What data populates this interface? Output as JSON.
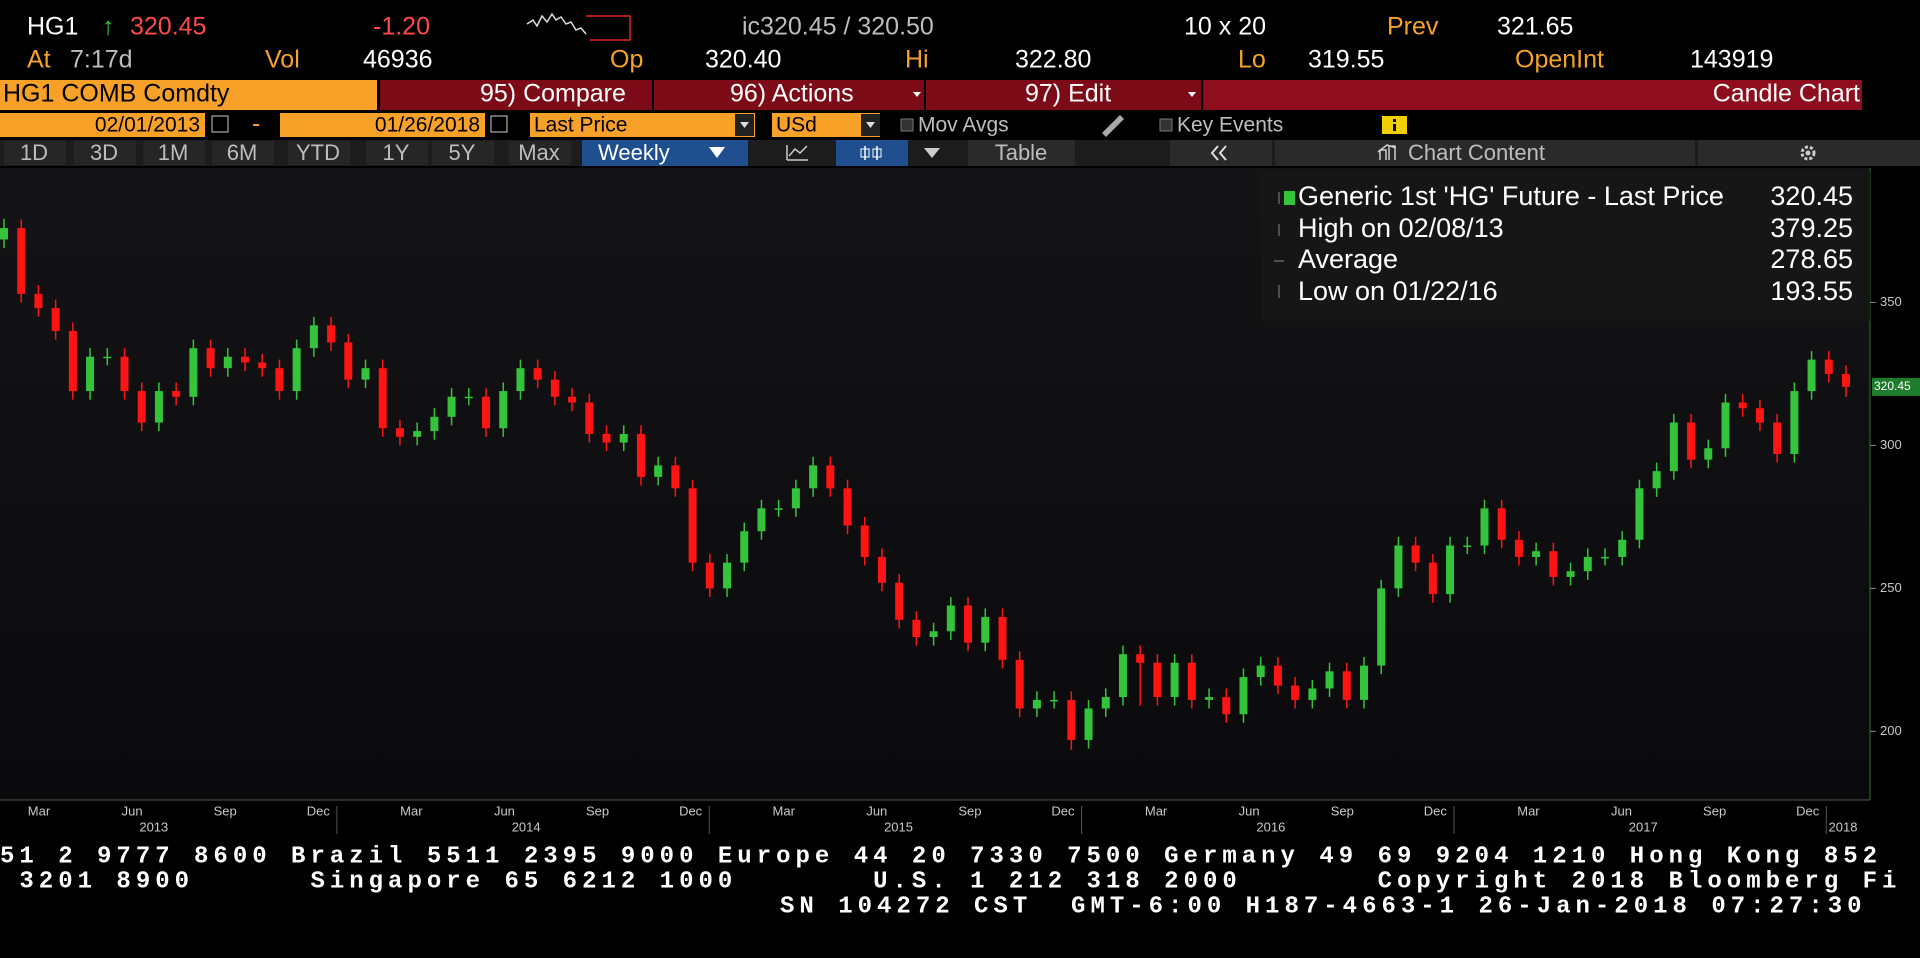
{
  "header": {
    "ticker": "HG1",
    "arrow": "↑",
    "last": "320.45",
    "change": "-1.20",
    "quote": "ic320.45 / 320.50",
    "size": "10 x 20",
    "prev_label": "Prev",
    "prev": "321.65",
    "at_label": "At",
    "time": "7:17d",
    "vol_label": "Vol",
    "vol": "46936",
    "op_label": "Op",
    "op": "320.40",
    "hi_label": "Hi",
    "hi": "322.80",
    "lo_label": "Lo",
    "lo": "319.55",
    "oi_label": "OpenInt",
    "oi": "143919",
    "security": "HG1 COMB Comdty",
    "menu": [
      "95) Compare",
      "96) Actions",
      "97) Edit"
    ],
    "view": "Candle Chart",
    "start_date": "02/01/2013",
    "dash": "-",
    "end_date": "01/26/2018",
    "field": "Last Price",
    "currency": "USd",
    "mov_avgs": "Mov Avgs",
    "key_events": "Key Events",
    "periods": [
      "1D",
      "3D",
      "1M",
      "6M",
      "YTD",
      "1Y",
      "5Y",
      "Max"
    ],
    "frequency": "Weekly",
    "table": "Table",
    "chart_content": "Chart Content"
  },
  "chart_data": {
    "type": "candlestick",
    "up_color": "#33c43b",
    "down_color": "#ff1414",
    "open": [
      372,
      376,
      353,
      348,
      340,
      319,
      331,
      331,
      319,
      308,
      319,
      317,
      334,
      327,
      331,
      329,
      327,
      319,
      334,
      342,
      336,
      323,
      327,
      306,
      303,
      305,
      310,
      317,
      317,
      306,
      319,
      327,
      323,
      317,
      315,
      304,
      301,
      304,
      289,
      293,
      285,
      259,
      250,
      259,
      270,
      278,
      278,
      285,
      293,
      285,
      272,
      261,
      252,
      239,
      233,
      235,
      244,
      231,
      240,
      225,
      208,
      211,
      211,
      197,
      208,
      212,
      227,
      224,
      212,
      224,
      211,
      212,
      206,
      219,
      223,
      216,
      211,
      215,
      221,
      211,
      223,
      250,
      265,
      259,
      248,
      265,
      265,
      278,
      267,
      261,
      263,
      254,
      256,
      261,
      261,
      267,
      285,
      291,
      308,
      295,
      299,
      315,
      313,
      308,
      297,
      319,
      330,
      325
    ],
    "high": [
      379.25,
      379,
      356,
      351,
      343,
      334,
      334,
      334,
      322,
      322,
      322,
      337,
      337,
      334,
      334,
      332,
      330,
      337,
      345,
      345,
      339,
      330,
      330,
      309,
      308,
      313,
      320,
      320,
      320,
      322,
      330,
      330,
      326,
      320,
      318,
      307,
      307,
      307,
      296,
      296,
      288,
      262,
      262,
      273,
      281,
      281,
      288,
      296,
      296,
      288,
      275,
      264,
      255,
      242,
      238,
      247,
      247,
      243,
      243,
      228,
      214,
      214,
      214,
      211,
      215,
      230,
      230,
      227,
      227,
      227,
      215,
      215,
      222,
      226,
      226,
      219,
      218,
      224,
      224,
      226,
      253,
      268,
      268,
      262,
      268,
      268,
      281,
      281,
      270,
      266,
      266,
      259,
      264,
      264,
      270,
      288,
      294,
      311,
      311,
      302,
      318,
      318,
      316,
      311,
      322,
      333,
      333,
      328
    ],
    "low": [
      369,
      350,
      345,
      337,
      316,
      316,
      328,
      316,
      305,
      305,
      314,
      314,
      324,
      324,
      326,
      324,
      316,
      316,
      331,
      333,
      320,
      320,
      303,
      300,
      300,
      302,
      307,
      314,
      303,
      303,
      316,
      320,
      314,
      312,
      301,
      298,
      298,
      286,
      286,
      282,
      256,
      247,
      247,
      256,
      267,
      275,
      275,
      282,
      282,
      269,
      258,
      249,
      236,
      230,
      230,
      232,
      228,
      228,
      222,
      205,
      205,
      208,
      193.55,
      194,
      205,
      209,
      209,
      209,
      209,
      208,
      208,
      203,
      203,
      216,
      213,
      208,
      208,
      212,
      208,
      208,
      220,
      247,
      256,
      245,
      245,
      262,
      262,
      264,
      258,
      258,
      251,
      251,
      253,
      258,
      258,
      264,
      282,
      288,
      292,
      292,
      296,
      310,
      305,
      294,
      294,
      316,
      322,
      317
    ],
    "close": [
      376,
      353,
      348,
      340,
      319,
      331,
      331,
      319,
      308,
      319,
      317,
      334,
      327,
      331,
      329,
      327,
      319,
      334,
      342,
      336,
      323,
      327,
      306,
      303,
      305,
      310,
      317,
      317,
      306,
      319,
      327,
      323,
      317,
      315,
      304,
      301,
      304,
      289,
      293,
      285,
      259,
      250,
      259,
      270,
      278,
      278,
      285,
      293,
      285,
      272,
      261,
      252,
      239,
      233,
      235,
      244,
      231,
      240,
      225,
      208,
      211,
      211,
      197,
      208,
      212,
      227,
      224,
      212,
      224,
      211,
      212,
      206,
      219,
      223,
      216,
      211,
      215,
      221,
      211,
      223,
      250,
      265,
      259,
      248,
      265,
      265,
      278,
      267,
      261,
      263,
      254,
      256,
      261,
      261,
      267,
      285,
      291,
      308,
      295,
      299,
      315,
      313,
      308,
      297,
      319,
      330,
      325,
      320.45
    ],
    "ylim": [
      176,
      397
    ],
    "yticks": [
      200,
      250,
      300,
      350
    ],
    "xticks": [
      "Mar",
      "Jun",
      "Sep",
      "Dec",
      "Mar",
      "Jun",
      "Sep",
      "Dec",
      "Mar",
      "Jun",
      "Sep",
      "Dec",
      "Mar",
      "Jun",
      "Sep",
      "Dec",
      "Mar",
      "Jun",
      "Sep",
      "Dec"
    ],
    "years": [
      2013,
      2014,
      2015,
      2016,
      2017,
      2018
    ],
    "legend": {
      "title": "Generic 1st 'HG' Future - Last Price",
      "high_label": "High on 02/08/13",
      "average_label": "Average",
      "average": 278.65,
      "low_label": "Low on 01/22/16"
    }
  },
  "footer": [
    "51 2 9777 8600 Brazil 5511 2395 9000 Europe 44 20 7330 7500 Germany 49 69 9204 1210 Hong Kong 852",
    " 3201 8900      Singapore 65 6212 1000       U.S. 1 212 318 2000       Copyright 2018 Bloomberg Fi",
    "SN 104272 CST  GMT-6:00 H187-4663-1 26-Jan-2018 07:27:30"
  ]
}
